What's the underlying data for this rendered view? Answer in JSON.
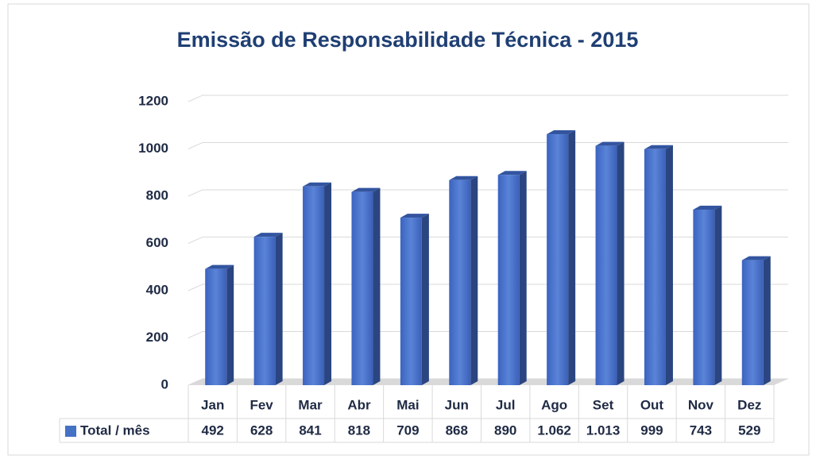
{
  "chart_data": {
    "type": "bar3d",
    "title": "Emissão de Responsabilidade Técnica - 2015",
    "categories": [
      "Jan",
      "Fev",
      "Mar",
      "Abr",
      "Mai",
      "Jun",
      "Jul",
      "Ago",
      "Set",
      "Out",
      "Nov",
      "Dez"
    ],
    "series": [
      {
        "name": "Total / mês",
        "color": "#4472c4",
        "values": [
          492,
          628,
          841,
          818,
          709,
          868,
          890,
          1062,
          1013,
          999,
          743,
          529
        ],
        "value_labels": [
          "492",
          "628",
          "841",
          "818",
          "709",
          "868",
          "890",
          "1.062",
          "1.013",
          "999",
          "743",
          "529"
        ]
      }
    ],
    "ylim": [
      0,
      1200
    ],
    "yticks": [
      0,
      200,
      400,
      600,
      800,
      1000,
      1200
    ],
    "grid": true
  }
}
